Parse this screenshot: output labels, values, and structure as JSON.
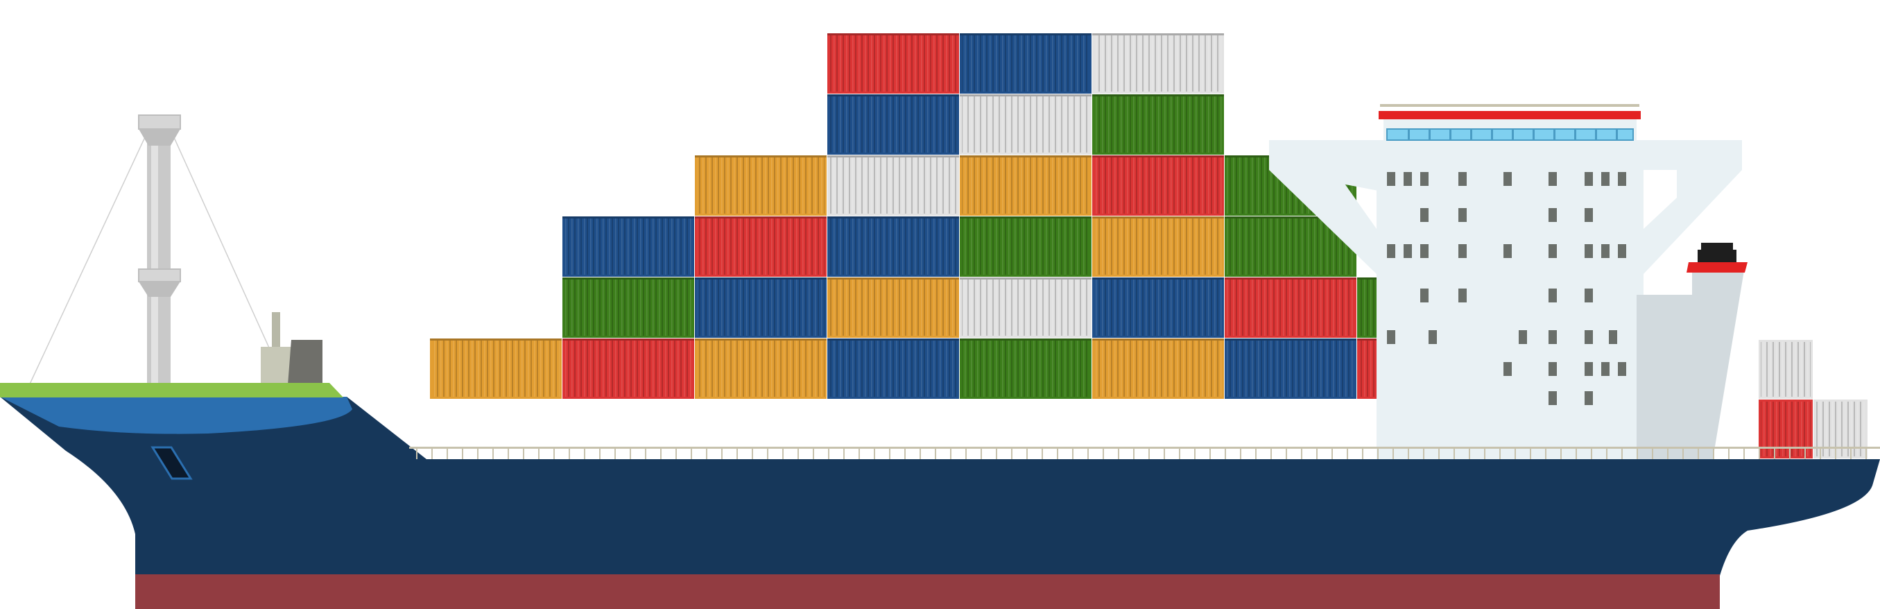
{
  "colors": {
    "hull": "#16375a",
    "hull_bottom": "#923c41",
    "bow_upper": "#2b6fb0",
    "deck_green": "#8bc34a",
    "superstructure": "#e9f1f4",
    "superstructure_shade": "#d2dade",
    "bridge_window": "#7fd0f0",
    "window_dark": "#6a6f6a",
    "accent_red": "#e32222",
    "funnel_top": "#1e1e1e",
    "mast": "#c8c8c8",
    "railing": "#c7c2ad"
  },
  "container_colors": {
    "orange": "#e29e32",
    "red": "#dc3535",
    "blue": "#1f4f8a",
    "green": "#3c7e1b",
    "white": "#e2e2e2"
  },
  "container_stacks": [
    [
      "orange"
    ],
    [
      "red",
      "green",
      "blue"
    ],
    [
      "orange",
      "blue",
      "red",
      "orange"
    ],
    [
      "blue",
      "orange",
      "blue",
      "white",
      "blue",
      "red"
    ],
    [
      "green",
      "white",
      "green",
      "orange",
      "white",
      "blue"
    ],
    [
      "orange",
      "blue",
      "orange",
      "red",
      "green",
      "white"
    ],
    [
      "blue",
      "red",
      "green",
      "green"
    ],
    [
      "red",
      "green"
    ]
  ],
  "aft_containers": [
    [
      "red",
      "white"
    ],
    [
      "white"
    ]
  ]
}
